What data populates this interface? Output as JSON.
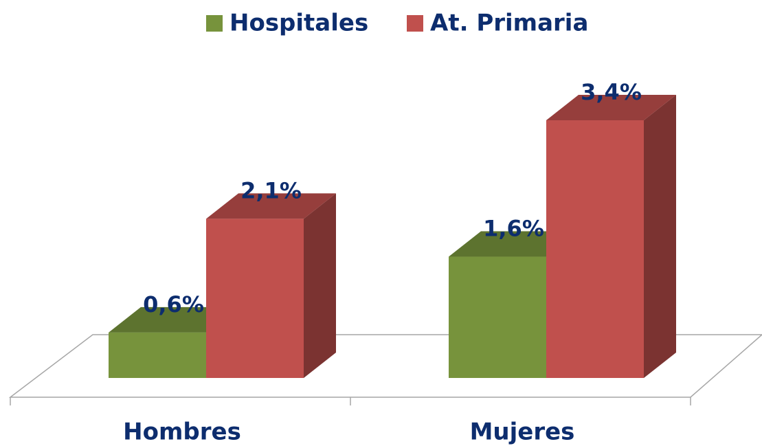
{
  "chart_data": {
    "type": "bar3d",
    "categories": [
      "Hombres",
      "Mujeres"
    ],
    "series": [
      {
        "name": "Hospitales",
        "color": "#77933c",
        "values": [
          0.6,
          1.6
        ],
        "value_labels": [
          "0,6%",
          "1,6%"
        ]
      },
      {
        "name": "At. Primaria",
        "color": "#c0504d",
        "values": [
          2.1,
          3.4
        ],
        "value_labels": [
          "2,1%",
          "3,4%"
        ]
      }
    ],
    "legend": "top"
  }
}
